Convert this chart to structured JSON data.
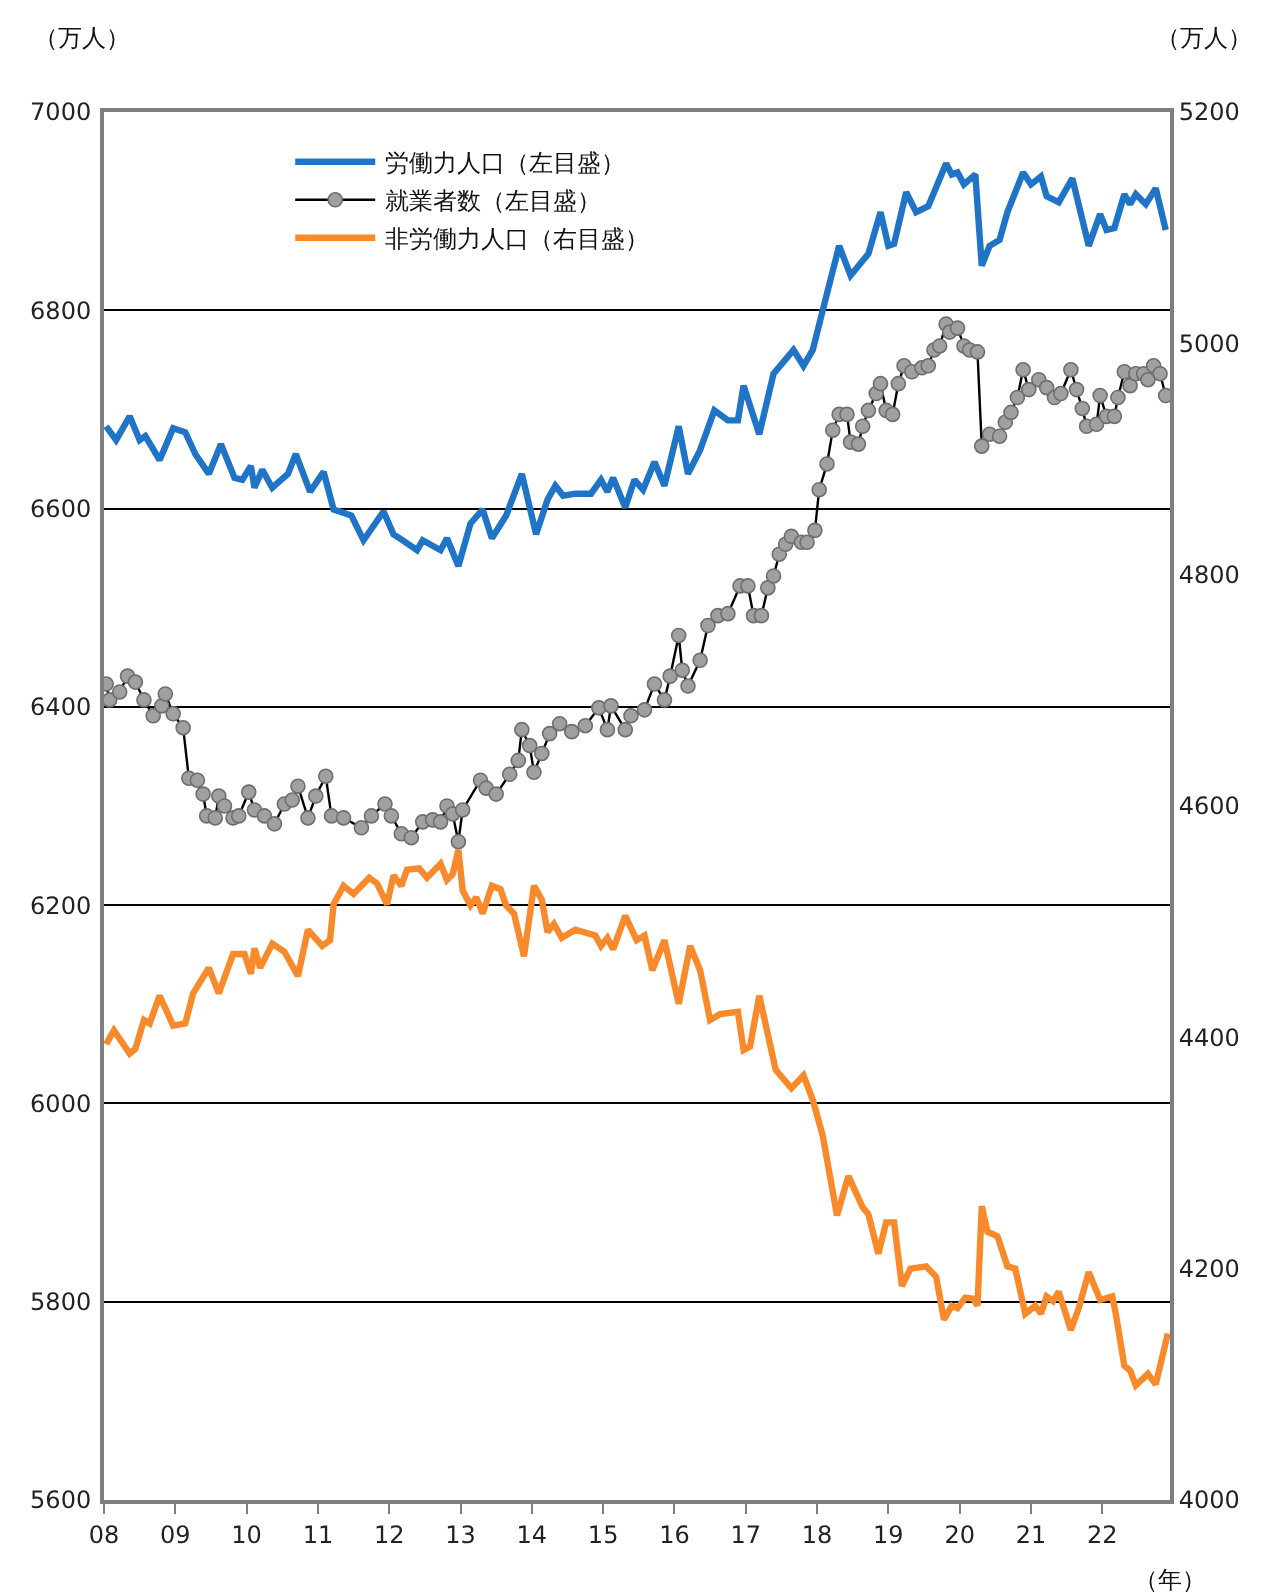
{
  "chart_data": {
    "type": "line",
    "xlabel": "（年）",
    "ylabel": "（万人）",
    "y2label": "（万人）",
    "grid": "y",
    "legend": "top left",
    "xlim": [
      2008,
      2022.95
    ],
    "xticks": [
      {
        "value": 2008,
        "label": "08"
      },
      {
        "value": 2009,
        "label": "09"
      },
      {
        "value": 2010,
        "label": "10"
      },
      {
        "value": 2011,
        "label": "11"
      },
      {
        "value": 2012,
        "label": "12"
      },
      {
        "value": 2013,
        "label": "13"
      },
      {
        "value": 2014,
        "label": "14"
      },
      {
        "value": 2015,
        "label": "15"
      },
      {
        "value": 2016,
        "label": "16"
      },
      {
        "value": 2017,
        "label": "17"
      },
      {
        "value": 2018,
        "label": "18"
      },
      {
        "value": 2019,
        "label": "19"
      },
      {
        "value": 2020,
        "label": "20"
      },
      {
        "value": 2021,
        "label": "21"
      },
      {
        "value": 2022,
        "label": "22"
      }
    ],
    "ylim": [
      5600,
      7000
    ],
    "yticks": [
      5600,
      5800,
      6000,
      6200,
      6400,
      6600,
      6800,
      7000
    ],
    "y2lim": [
      4000,
      5200
    ],
    "y2ticks": [
      4000,
      4200,
      4400,
      4600,
      4800,
      5000,
      5200
    ],
    "series": [
      {
        "name": "労働力人口（左目盛）",
        "color": "#1f74c8",
        "marker": "none",
        "x": [
          2008.03,
          2008.17,
          2008.36,
          2008.5,
          2008.58,
          2008.78,
          2008.97,
          2009.14,
          2009.28,
          2009.47,
          2009.64,
          2009.83,
          2009.94,
          2010.06,
          2010.11,
          2010.22,
          2010.36,
          2010.58,
          2010.69,
          2010.89,
          2011.08,
          2011.22,
          2011.47,
          2011.64,
          2011.92,
          2012.06,
          2012.19,
          2012.39,
          2012.47,
          2012.72,
          2012.81,
          2012.97,
          2013.14,
          2013.31,
          2013.44,
          2013.64,
          2013.86,
          2014.06,
          2014.22,
          2014.33,
          2014.44,
          2014.61,
          2014.83,
          2014.97,
          2015.06,
          2015.14,
          2015.31,
          2015.44,
          2015.56,
          2015.72,
          2015.86,
          2016.06,
          2016.19,
          2016.36,
          2016.56,
          2016.75,
          2016.89,
          2016.97,
          2017.19,
          2017.39,
          2017.67,
          2017.81,
          2017.94,
          2018.08,
          2018.31,
          2018.47,
          2018.72,
          2018.89,
          2019.0,
          2019.08,
          2019.25,
          2019.39,
          2019.56,
          2019.81,
          2019.89,
          2019.97,
          2020.06,
          2020.22,
          2020.31,
          2020.42,
          2020.56,
          2020.67,
          2020.89,
          2021.0,
          2021.14,
          2021.22,
          2021.39,
          2021.58,
          2021.81,
          2021.97,
          2022.06,
          2022.17,
          2022.31,
          2022.39,
          2022.47,
          2022.61,
          2022.75,
          2022.89
        ],
        "values": [
          6683,
          6669,
          6693,
          6669,
          6673,
          6649,
          6681,
          6677,
          6655,
          6635,
          6665,
          6631,
          6629,
          6643,
          6621,
          6639,
          6621,
          6635,
          6655,
          6617,
          6637,
          6599,
          6593,
          6568,
          6597,
          6574,
          6568,
          6558,
          6568,
          6558,
          6570,
          6542,
          6585,
          6599,
          6570,
          6593,
          6635,
          6574,
          6609,
          6623,
          6613,
          6615,
          6615,
          6629,
          6617,
          6631,
          6601,
          6629,
          6619,
          6647,
          6623,
          6683,
          6635,
          6659,
          6699,
          6689,
          6689,
          6724,
          6675,
          6736,
          6760,
          6744,
          6760,
          6800,
          6865,
          6835,
          6857,
          6899,
          6865,
          6867,
          6919,
          6899,
          6905,
          6948,
          6937,
          6939,
          6927,
          6937,
          6845,
          6865,
          6871,
          6899,
          6939,
          6927,
          6935,
          6915,
          6909,
          6933,
          6865,
          6897,
          6881,
          6883,
          6917,
          6907,
          6917,
          6907,
          6923,
          6881
        ]
      },
      {
        "name": "就業者数（左目盛）",
        "color": "#a0a0a0",
        "marker": "circle",
        "x": [
          2008.03,
          2008.08,
          2008.22,
          2008.33,
          2008.44,
          2008.56,
          2008.69,
          2008.81,
          2008.86,
          2008.97,
          2009.11,
          2009.19,
          2009.31,
          2009.39,
          2009.44,
          2009.56,
          2009.61,
          2009.69,
          2009.81,
          2009.89,
          2010.03,
          2010.11,
          2010.25,
          2010.39,
          2010.53,
          2010.64,
          2010.72,
          2010.86,
          2010.97,
          2011.11,
          2011.19,
          2011.36,
          2011.61,
          2011.75,
          2011.94,
          2012.03,
          2012.17,
          2012.31,
          2012.47,
          2012.61,
          2012.72,
          2012.81,
          2012.89,
          2012.97,
          2013.03,
          2013.28,
          2013.36,
          2013.5,
          2013.69,
          2013.81,
          2013.86,
          2013.97,
          2014.03,
          2014.14,
          2014.25,
          2014.39,
          2014.56,
          2014.75,
          2014.94,
          2015.06,
          2015.11,
          2015.31,
          2015.39,
          2015.58,
          2015.72,
          2015.86,
          2015.94,
          2016.06,
          2016.11,
          2016.19,
          2016.36,
          2016.47,
          2016.61,
          2016.75,
          2016.92,
          2017.03,
          2017.11,
          2017.22,
          2017.31,
          2017.39,
          2017.47,
          2017.56,
          2017.64,
          2017.78,
          2017.86,
          2017.97,
          2018.03,
          2018.14,
          2018.22,
          2018.31,
          2018.42,
          2018.47,
          2018.58,
          2018.64,
          2018.72,
          2018.83,
          2018.89,
          2018.97,
          2019.06,
          2019.14,
          2019.22,
          2019.33,
          2019.47,
          2019.56,
          2019.64,
          2019.72,
          2019.81,
          2019.86,
          2019.97,
          2020.06,
          2020.14,
          2020.25,
          2020.31,
          2020.42,
          2020.56,
          2020.64,
          2020.72,
          2020.81,
          2020.89,
          2020.97,
          2021.11,
          2021.22,
          2021.33,
          2021.42,
          2021.56,
          2021.64,
          2021.72,
          2021.78,
          2021.92,
          2021.97,
          2022.06,
          2022.17,
          2022.22,
          2022.31,
          2022.39,
          2022.47,
          2022.58,
          2022.64,
          2022.72,
          2022.81,
          2022.89
        ],
        "values": [
          6423,
          6407,
          6415,
          6431,
          6425,
          6407,
          6391,
          6401,
          6413,
          6393,
          6379,
          6328,
          6326,
          6312,
          6290,
          6288,
          6310,
          6300,
          6288,
          6290,
          6314,
          6296,
          6290,
          6282,
          6302,
          6306,
          6320,
          6288,
          6310,
          6330,
          6290,
          6288,
          6278,
          6290,
          6302,
          6290,
          6272,
          6268,
          6284,
          6286,
          6284,
          6300,
          6292,
          6264,
          6296,
          6326,
          6318,
          6312,
          6332,
          6346,
          6377,
          6361,
          6334,
          6353,
          6373,
          6383,
          6375,
          6381,
          6399,
          6377,
          6401,
          6377,
          6391,
          6397,
          6423,
          6407,
          6431,
          6472,
          6437,
          6421,
          6447,
          6482,
          6492,
          6494,
          6522,
          6522,
          6492,
          6492,
          6520,
          6532,
          6554,
          6564,
          6572,
          6566,
          6566,
          6578,
          6619,
          6645,
          6679,
          6695,
          6695,
          6667,
          6665,
          6683,
          6699,
          6716,
          6726,
          6699,
          6695,
          6726,
          6744,
          6738,
          6742,
          6744,
          6760,
          6764,
          6786,
          6778,
          6782,
          6764,
          6760,
          6758,
          6663,
          6675,
          6673,
          6687,
          6697,
          6712,
          6740,
          6720,
          6730,
          6722,
          6712,
          6716,
          6740,
          6720,
          6701,
          6683,
          6685,
          6714,
          6693,
          6693,
          6712,
          6738,
          6724,
          6736,
          6736,
          6730,
          6744,
          6736,
          6714
        ]
      },
      {
        "name": "非労働力人口（右目盛）",
        "color": "#f98a2b",
        "marker": "none",
        "axis": "y2",
        "x": [
          2008.03,
          2008.14,
          2008.36,
          2008.44,
          2008.56,
          2008.64,
          2008.78,
          2008.97,
          2009.14,
          2009.25,
          2009.47,
          2009.61,
          2009.81,
          2009.97,
          2010.06,
          2010.11,
          2010.19,
          2010.36,
          2010.53,
          2010.72,
          2010.86,
          2011.06,
          2011.17,
          2011.22,
          2011.36,
          2011.5,
          2011.72,
          2011.83,
          2011.97,
          2012.06,
          2012.17,
          2012.25,
          2012.42,
          2012.53,
          2012.72,
          2012.81,
          2012.89,
          2012.97,
          2013.03,
          2013.14,
          2013.22,
          2013.31,
          2013.44,
          2013.56,
          2013.64,
          2013.75,
          2013.89,
          2014.03,
          2014.14,
          2014.22,
          2014.31,
          2014.42,
          2014.61,
          2014.89,
          2014.97,
          2015.06,
          2015.14,
          2015.31,
          2015.47,
          2015.58,
          2015.69,
          2015.86,
          2016.06,
          2016.22,
          2016.36,
          2016.5,
          2016.64,
          2016.89,
          2016.97,
          2017.06,
          2017.19,
          2017.42,
          2017.64,
          2017.81,
          2017.94,
          2018.08,
          2018.28,
          2018.44,
          2018.64,
          2018.72,
          2018.86,
          2018.97,
          2019.08,
          2019.19,
          2019.31,
          2019.53,
          2019.67,
          2019.78,
          2019.89,
          2019.97,
          2020.08,
          2020.19,
          2020.25,
          2020.31,
          2020.39,
          2020.53,
          2020.67,
          2020.78,
          2020.92,
          2021.06,
          2021.14,
          2021.22,
          2021.31,
          2021.39,
          2021.56,
          2021.67,
          2021.81,
          2021.97,
          2022.14,
          2022.19,
          2022.31,
          2022.39,
          2022.47,
          2022.64,
          2022.75,
          2022.92
        ],
        "values": [
          4394,
          4406,
          4386,
          4390,
          4415,
          4412,
          4436,
          4410,
          4412,
          4438,
          4460,
          4438,
          4472,
          4472,
          4455,
          4477,
          4460,
          4481,
          4474,
          4453,
          4493,
          4479,
          4484,
          4515,
          4531,
          4524,
          4538,
          4533,
          4515,
          4540,
          4531,
          4545,
          4546,
          4538,
          4550,
          4536,
          4541,
          4562,
          4527,
          4514,
          4521,
          4507,
          4531,
          4528,
          4514,
          4507,
          4470,
          4531,
          4519,
          4491,
          4498,
          4486,
          4493,
          4488,
          4479,
          4486,
          4476,
          4505,
          4484,
          4488,
          4458,
          4484,
          4429,
          4479,
          4458,
          4415,
          4420,
          4422,
          4389,
          4392,
          4436,
          4372,
          4356,
          4367,
          4346,
          4315,
          4246,
          4280,
          4253,
          4247,
          4213,
          4240,
          4240,
          4185,
          4200,
          4202,
          4193,
          4156,
          4168,
          4166,
          4175,
          4174,
          4168,
          4254,
          4232,
          4228,
          4202,
          4200,
          4161,
          4168,
          4161,
          4176,
          4172,
          4180,
          4147,
          4166,
          4197,
          4173,
          4176,
          4161,
          4116,
          4112,
          4099,
          4109,
          4100,
          4144
        ]
      }
    ]
  }
}
